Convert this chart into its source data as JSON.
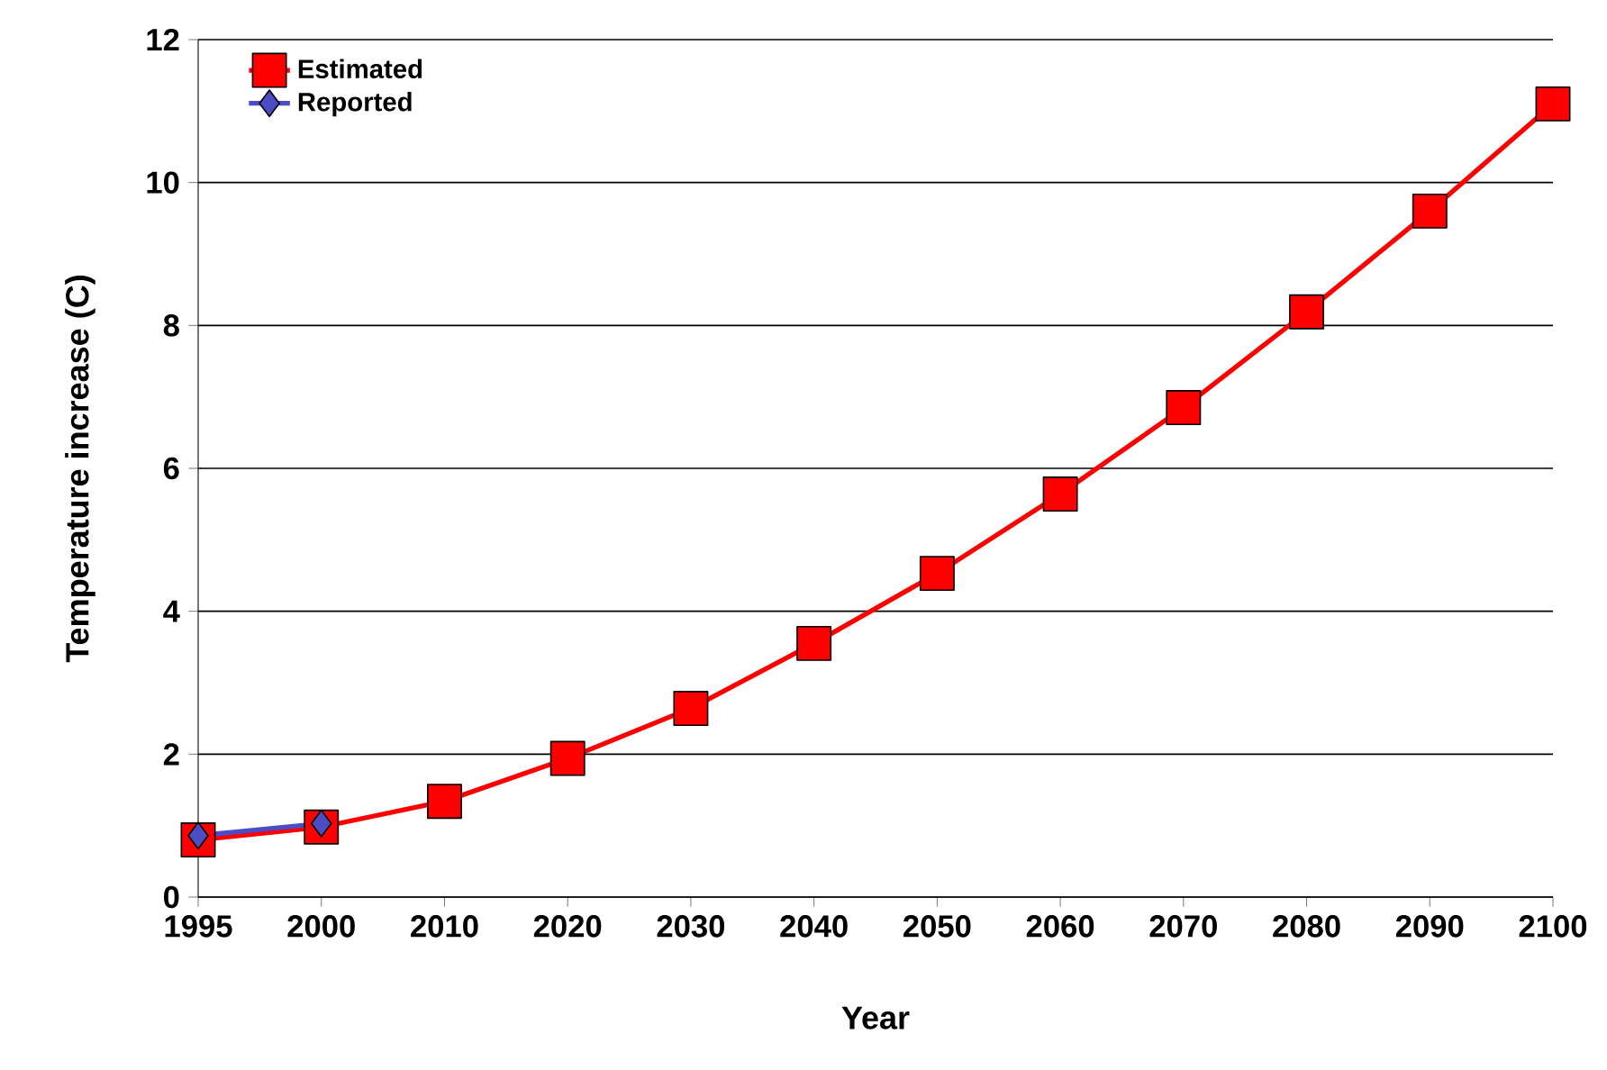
{
  "chart_data": {
    "type": "line",
    "xlabel": "Year",
    "ylabel": "Temperature increase (C)",
    "categories": [
      "1995",
      "2000",
      "2010",
      "2020",
      "2030",
      "2040",
      "2050",
      "2060",
      "2070",
      "2080",
      "2090",
      "2100"
    ],
    "series": [
      {
        "name": "Estimated",
        "color": "#ff0000",
        "marker": "square",
        "values": [
          0.8,
          0.98,
          1.34,
          1.94,
          2.64,
          3.55,
          4.53,
          5.64,
          6.85,
          8.19,
          9.6,
          11.1
        ]
      },
      {
        "name": "Reported",
        "color": "#4c4cc4",
        "marker": "diamond",
        "values": [
          0.86,
          1.03,
          null,
          null,
          null,
          null,
          null,
          null,
          null,
          null,
          null,
          null
        ]
      }
    ],
    "ylim": [
      0,
      12
    ],
    "yticks": [
      0,
      2,
      4,
      6,
      8,
      10,
      12
    ],
    "grid": "y",
    "legend": "top left",
    "line_style": "solid"
  }
}
